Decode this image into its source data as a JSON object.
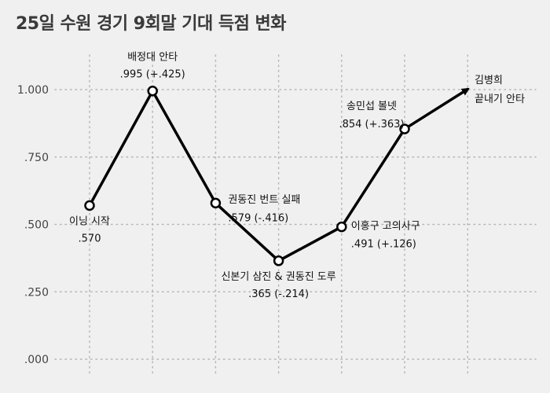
{
  "chart_data": {
    "type": "line",
    "title": "25일 수원 경기 9회말 기대 득점 변화",
    "xlabel": "",
    "ylabel": "",
    "ylim": [
      0,
      1.1
    ],
    "y_ticks": [
      ".000",
      ".250",
      ".500",
      ".750",
      "1.000"
    ],
    "y_tick_values": [
      0,
      0.25,
      0.5,
      0.75,
      1.0
    ],
    "grid": true,
    "series": [
      {
        "values": [
          0.57,
          0.995,
          0.579,
          0.365,
          0.491,
          0.854
        ],
        "color": "#000000"
      }
    ],
    "points": [
      {
        "value": 0.57,
        "lines": [
          "이닝 시작",
          ".570"
        ],
        "pos": "below"
      },
      {
        "value": 0.995,
        "lines": [
          "배정대 안타",
          ".995 (+.425)"
        ],
        "pos": "above"
      },
      {
        "value": 0.579,
        "lines": [
          "권동진 번트 실패",
          ".579 (-.416)"
        ],
        "pos": "right"
      },
      {
        "value": 0.365,
        "lines": [
          "신본기 삼진 & 권동진 도루",
          ".365 (-.214)"
        ],
        "pos": "below"
      },
      {
        "value": 0.491,
        "lines": [
          "이홍구 고의사구",
          ".491 (+.126)"
        ],
        "pos": "right"
      },
      {
        "value": 0.854,
        "lines": [
          "송민섭 볼넷",
          ".854 (+.363)"
        ],
        "pos": "above"
      }
    ],
    "end_annotation": [
      "김병희",
      "끝내기 안타"
    ]
  }
}
